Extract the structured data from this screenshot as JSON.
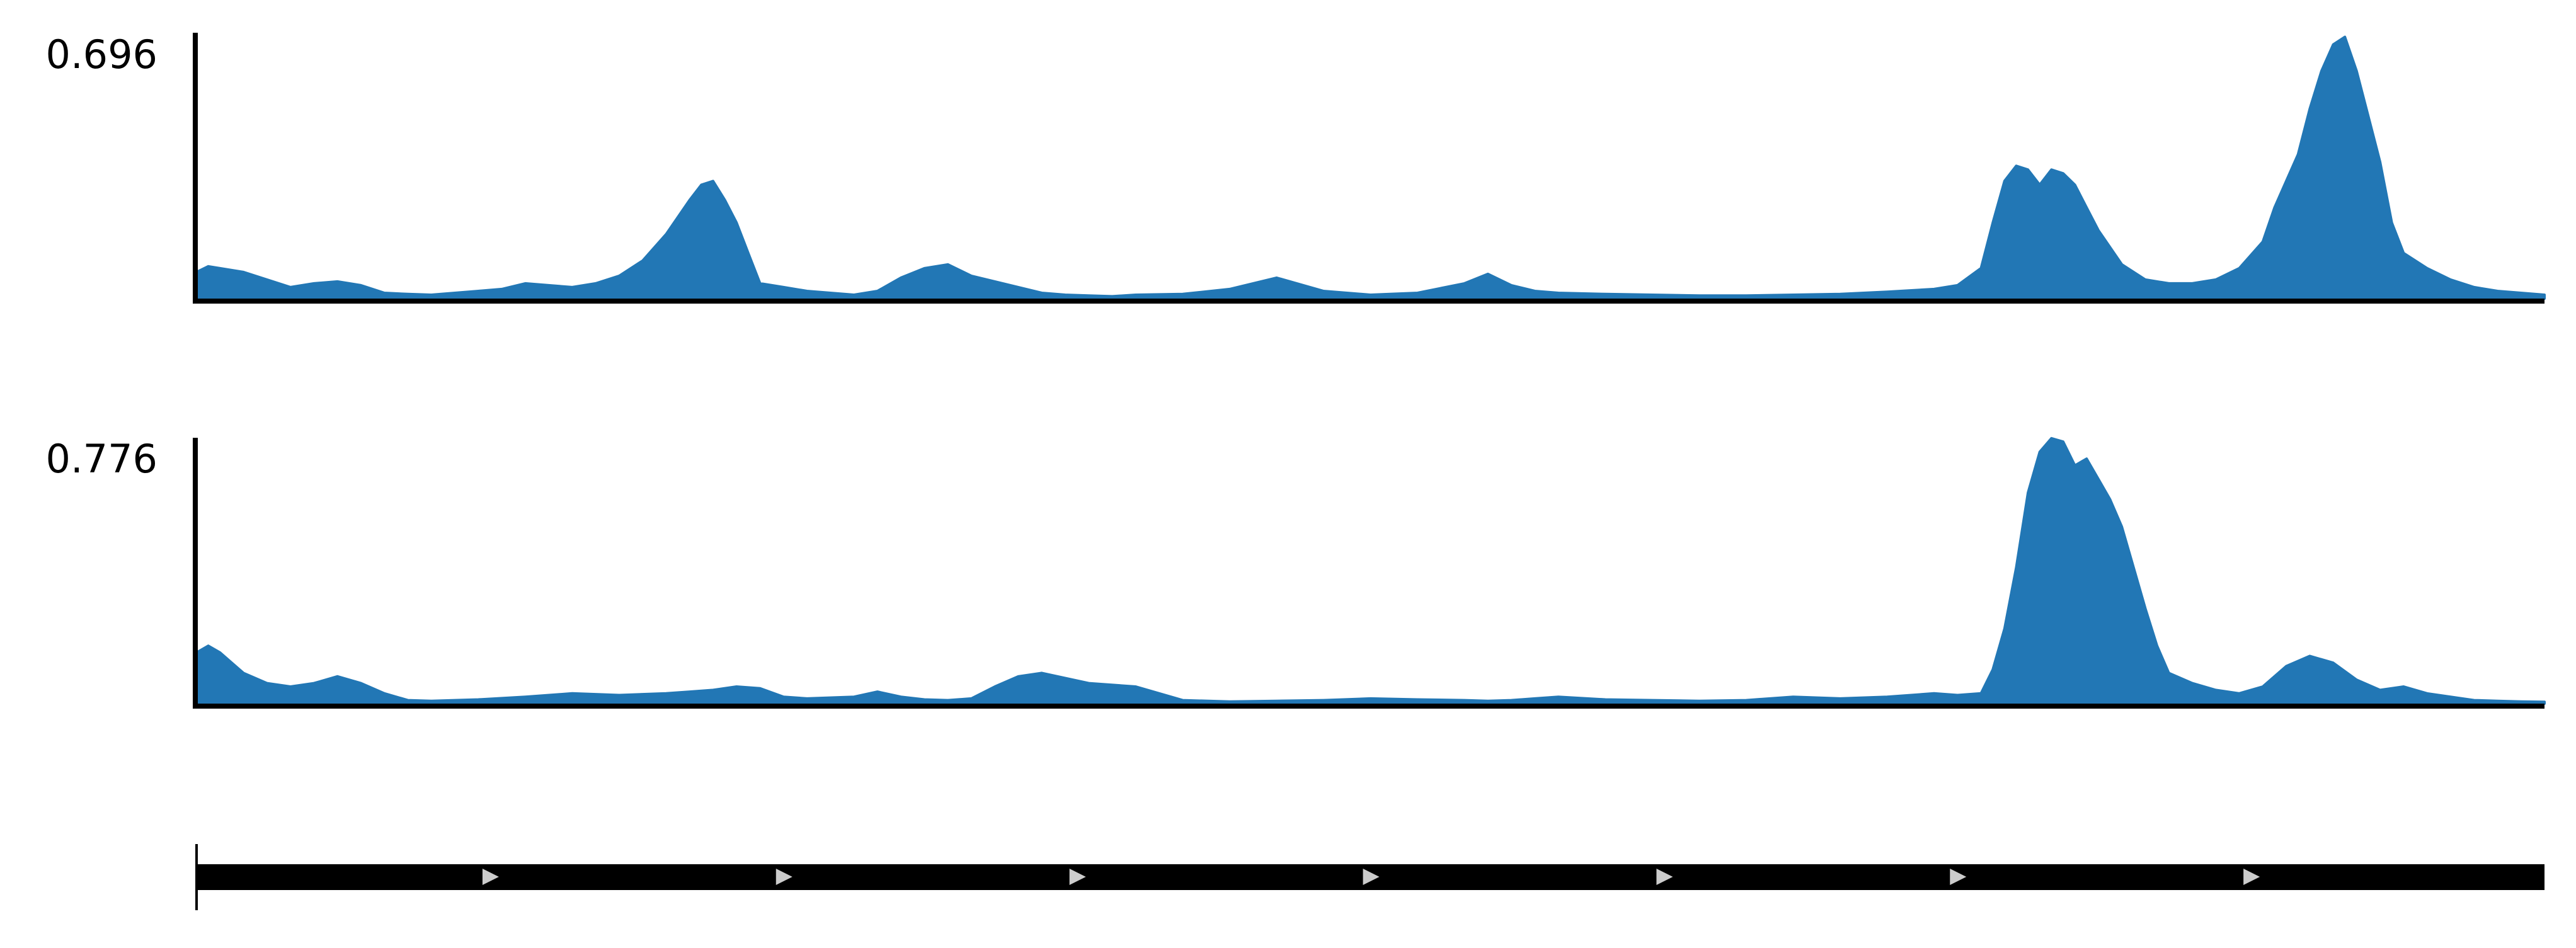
{
  "colors": {
    "fill": "#2277b5",
    "axis": "#000000",
    "strand_marker": "#cccccc",
    "background": "#ffffff"
  },
  "chart_data": [
    {
      "type": "area",
      "track": 1,
      "ymax_label": "0.696",
      "ylim": [
        0,
        0.696
      ],
      "x_range": [
        0,
        1
      ],
      "grid": false,
      "x": [
        0,
        0.005,
        0.01,
        0.02,
        0.03,
        0.04,
        0.05,
        0.06,
        0.07,
        0.08,
        0.09,
        0.1,
        0.11,
        0.12,
        0.13,
        0.14,
        0.15,
        0.16,
        0.17,
        0.18,
        0.19,
        0.2,
        0.21,
        0.215,
        0.22,
        0.225,
        0.23,
        0.235,
        0.24,
        0.25,
        0.26,
        0.27,
        0.28,
        0.29,
        0.3,
        0.31,
        0.32,
        0.33,
        0.34,
        0.35,
        0.36,
        0.37,
        0.38,
        0.39,
        0.4,
        0.42,
        0.44,
        0.46,
        0.48,
        0.5,
        0.52,
        0.54,
        0.55,
        0.56,
        0.57,
        0.58,
        0.6,
        0.62,
        0.64,
        0.66,
        0.68,
        0.7,
        0.72,
        0.74,
        0.75,
        0.76,
        0.765,
        0.77,
        0.775,
        0.78,
        0.785,
        0.79,
        0.795,
        0.8,
        0.805,
        0.81,
        0.82,
        0.83,
        0.84,
        0.85,
        0.86,
        0.87,
        0.88,
        0.885,
        0.89,
        0.895,
        0.9,
        0.905,
        0.91,
        0.915,
        0.92,
        0.925,
        0.93,
        0.935,
        0.94,
        0.95,
        0.96,
        0.97,
        0.98,
        0.99,
        1.0
      ],
      "y": [
        0.07,
        0.085,
        0.08,
        0.07,
        0.05,
        0.03,
        0.04,
        0.045,
        0.035,
        0.015,
        0.012,
        0.01,
        0.015,
        0.02,
        0.025,
        0.04,
        0.035,
        0.03,
        0.04,
        0.06,
        0.1,
        0.17,
        0.26,
        0.3,
        0.31,
        0.26,
        0.2,
        0.12,
        0.04,
        0.03,
        0.02,
        0.015,
        0.01,
        0.02,
        0.055,
        0.08,
        0.09,
        0.06,
        0.045,
        0.03,
        0.015,
        0.01,
        0.008,
        0.006,
        0.01,
        0.012,
        0.025,
        0.055,
        0.02,
        0.01,
        0.015,
        0.04,
        0.065,
        0.035,
        0.02,
        0.015,
        0.012,
        0.01,
        0.008,
        0.008,
        0.01,
        0.012,
        0.018,
        0.025,
        0.035,
        0.08,
        0.2,
        0.31,
        0.35,
        0.34,
        0.3,
        0.34,
        0.33,
        0.3,
        0.24,
        0.18,
        0.09,
        0.05,
        0.04,
        0.04,
        0.05,
        0.08,
        0.15,
        0.24,
        0.31,
        0.38,
        0.5,
        0.6,
        0.67,
        0.69,
        0.6,
        0.48,
        0.36,
        0.2,
        0.12,
        0.08,
        0.05,
        0.03,
        0.02,
        0.015,
        0.01
      ]
    },
    {
      "type": "area",
      "track": 2,
      "ymax_label": "0.776",
      "ylim": [
        0,
        0.776
      ],
      "x_range": [
        0,
        1
      ],
      "grid": false,
      "x": [
        0,
        0.005,
        0.01,
        0.015,
        0.02,
        0.03,
        0.04,
        0.05,
        0.06,
        0.07,
        0.08,
        0.09,
        0.1,
        0.12,
        0.14,
        0.16,
        0.18,
        0.2,
        0.21,
        0.22,
        0.23,
        0.24,
        0.25,
        0.26,
        0.28,
        0.29,
        0.3,
        0.31,
        0.32,
        0.33,
        0.34,
        0.35,
        0.36,
        0.38,
        0.4,
        0.42,
        0.44,
        0.46,
        0.48,
        0.5,
        0.52,
        0.54,
        0.55,
        0.56,
        0.57,
        0.58,
        0.6,
        0.62,
        0.64,
        0.66,
        0.68,
        0.7,
        0.72,
        0.74,
        0.75,
        0.76,
        0.765,
        0.77,
        0.775,
        0.78,
        0.785,
        0.79,
        0.795,
        0.8,
        0.805,
        0.81,
        0.815,
        0.82,
        0.825,
        0.83,
        0.835,
        0.84,
        0.85,
        0.86,
        0.87,
        0.88,
        0.89,
        0.9,
        0.91,
        0.92,
        0.93,
        0.94,
        0.95,
        0.96,
        0.97,
        0.98,
        0.99,
        1.0
      ],
      "y": [
        0.15,
        0.17,
        0.15,
        0.12,
        0.09,
        0.06,
        0.05,
        0.06,
        0.08,
        0.06,
        0.03,
        0.01,
        0.008,
        0.012,
        0.02,
        0.03,
        0.025,
        0.03,
        0.035,
        0.04,
        0.05,
        0.045,
        0.02,
        0.015,
        0.02,
        0.035,
        0.02,
        0.012,
        0.01,
        0.015,
        0.05,
        0.08,
        0.09,
        0.06,
        0.05,
        0.01,
        0.006,
        0.008,
        0.01,
        0.015,
        0.012,
        0.01,
        0.008,
        0.01,
        0.015,
        0.02,
        0.012,
        0.01,
        0.008,
        0.01,
        0.02,
        0.015,
        0.02,
        0.03,
        0.025,
        0.03,
        0.1,
        0.22,
        0.4,
        0.62,
        0.74,
        0.78,
        0.77,
        0.7,
        0.72,
        0.66,
        0.6,
        0.52,
        0.4,
        0.28,
        0.17,
        0.09,
        0.06,
        0.04,
        0.03,
        0.05,
        0.11,
        0.14,
        0.12,
        0.07,
        0.04,
        0.05,
        0.03,
        0.02,
        0.01,
        0.008,
        0.006,
        0.005
      ]
    },
    {
      "type": "gene_track",
      "track": 3,
      "strand": "+",
      "strand_marker_positions": [
        0.125,
        0.25,
        0.375,
        0.5,
        0.625,
        0.75,
        0.875
      ]
    }
  ]
}
